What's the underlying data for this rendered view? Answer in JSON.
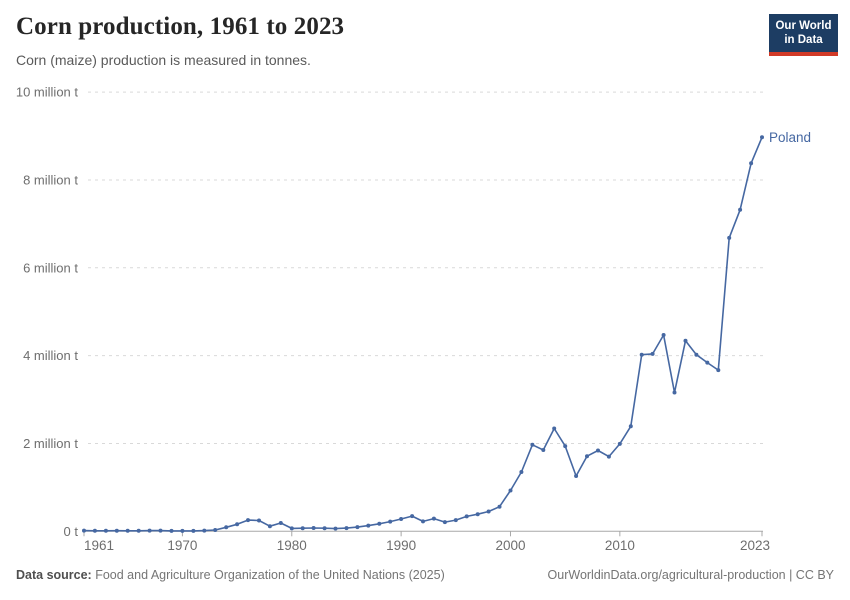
{
  "header": {
    "title": "Corn production, 1961 to 2023",
    "subtitle": "Corn (maize) production is measured in tonnes."
  },
  "logo": {
    "line1": "Our World",
    "line2": "in Data",
    "bg_color": "#1d3d63",
    "accent_color": "#d13a27"
  },
  "chart_data": {
    "type": "line",
    "title": "Corn production, 1961 to 2023",
    "subtitle": "Corn (maize) production is measured in tonnes.",
    "unit": "tonnes",
    "legend": "end-of-line-label",
    "grid": "horizontal-dashed",
    "xlim": [
      1961,
      2023
    ],
    "ylim": [
      0,
      10000000
    ],
    "x_ticks": [
      1961,
      1970,
      1980,
      1990,
      2000,
      2010,
      2023
    ],
    "y_ticks": [
      {
        "value": 0,
        "label": "0 t"
      },
      {
        "value": 2000000,
        "label": "2 million t"
      },
      {
        "value": 4000000,
        "label": "4 million t"
      },
      {
        "value": 6000000,
        "label": "6 million t"
      },
      {
        "value": 8000000,
        "label": "8 million t"
      },
      {
        "value": 10000000,
        "label": "10 million t"
      }
    ],
    "x": [
      1961,
      1962,
      1963,
      1964,
      1965,
      1966,
      1967,
      1968,
      1969,
      1970,
      1971,
      1972,
      1973,
      1974,
      1975,
      1976,
      1977,
      1978,
      1979,
      1980,
      1981,
      1982,
      1983,
      1984,
      1985,
      1986,
      1987,
      1988,
      1989,
      1990,
      1991,
      1992,
      1993,
      1994,
      1995,
      1996,
      1997,
      1998,
      1999,
      2000,
      2001,
      2002,
      2003,
      2004,
      2005,
      2006,
      2007,
      2008,
      2009,
      2010,
      2011,
      2012,
      2013,
      2014,
      2015,
      2016,
      2017,
      2018,
      2019,
      2020,
      2021,
      2022,
      2023
    ],
    "series": [
      {
        "name": "Poland",
        "color": "#4668a2",
        "values": [
          17000,
          11000,
          12000,
          14000,
          11000,
          12000,
          15000,
          15000,
          10000,
          8000,
          10000,
          15000,
          30000,
          90000,
          160000,
          255000,
          245000,
          115000,
          190000,
          65000,
          70000,
          75000,
          70000,
          62000,
          72000,
          95000,
          130000,
          170000,
          220000,
          280000,
          345000,
          225000,
          290000,
          210000,
          255000,
          340000,
          390000,
          450000,
          560000,
          930000,
          1350000,
          1970000,
          1850000,
          2340000,
          1940000,
          1260000,
          1710000,
          1840000,
          1700000,
          1990000,
          2390000,
          4020000,
          4040000,
          4470000,
          3160000,
          4340000,
          4020000,
          3840000,
          3670000,
          6680000,
          7320000,
          8380000,
          8970000
        ]
      }
    ],
    "style": {
      "grid_color": "#d9d9d9",
      "axis_color": "#a8a8a8",
      "tick_label_color": "#6e6e6e"
    }
  },
  "footer": {
    "source_label": "Data source:",
    "source_text": "Food and Agriculture Organization of the United Nations (2025)",
    "credit": "OurWorldinData.org/agricultural-production | CC BY"
  }
}
